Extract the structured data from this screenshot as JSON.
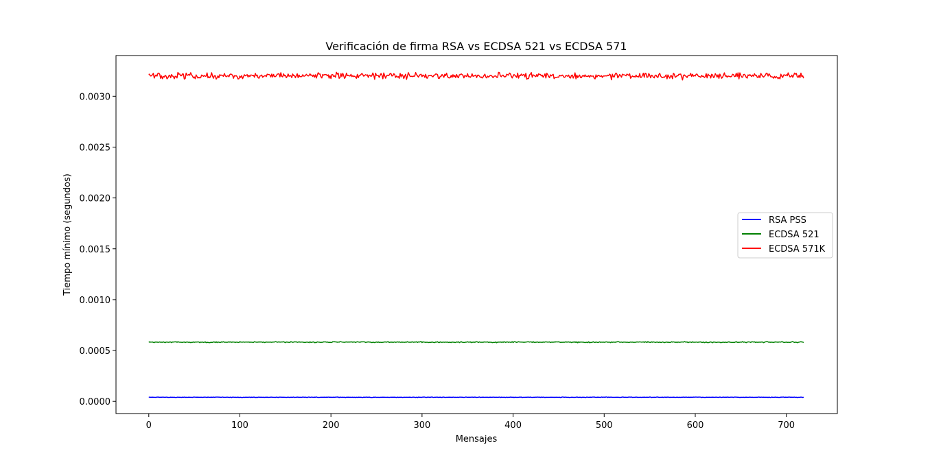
{
  "chart_data": {
    "type": "line",
    "title": "Verificación de firma RSA vs ECDSA 521 vs ECDSA 571",
    "xlabel": "Mensajes",
    "ylabel": "Tiempo mínimo (segundos)",
    "xlim": [
      -36,
      756
    ],
    "ylim": [
      -0.00012,
      0.0034
    ],
    "xticks": [
      0,
      100,
      200,
      300,
      400,
      500,
      600,
      700
    ],
    "xtick_labels": [
      "0",
      "100",
      "200",
      "300",
      "400",
      "500",
      "600",
      "700"
    ],
    "yticks": [
      0.0,
      0.0005,
      0.001,
      0.0015,
      0.002,
      0.0025,
      0.003
    ],
    "ytick_labels": [
      "0.0000",
      "0.0005",
      "0.0010",
      "0.0015",
      "0.0020",
      "0.0025",
      "0.0030"
    ],
    "grid": false,
    "legend_position": "center-right",
    "n_points": 720,
    "series": [
      {
        "name": "RSA PSS",
        "color": "#0000ff",
        "base": 4e-05,
        "noise": 1.5e-06,
        "start": 4.2e-05
      },
      {
        "name": "ECDSA 521",
        "color": "#008000",
        "base": 0.000582,
        "noise": 3e-06,
        "start": 0.00058
      },
      {
        "name": "ECDSA 571K",
        "color": "#ff0000",
        "base": 0.0032,
        "noise": 1.8e-05,
        "start": 0.00322
      }
    ]
  }
}
